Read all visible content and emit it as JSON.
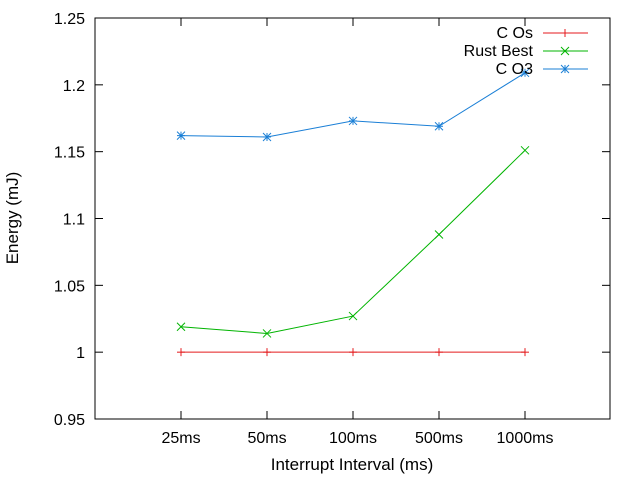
{
  "chart_data": {
    "type": "line",
    "title": "",
    "xlabel": "Interrupt Interval (ms)",
    "ylabel": "Energy (mJ)",
    "categories": [
      "25ms",
      "50ms",
      "100ms",
      "500ms",
      "1000ms"
    ],
    "ylim": [
      0.95,
      1.25
    ],
    "yticks": [
      "0.95",
      "1",
      "1.05",
      "1.1",
      "1.15",
      "1.2",
      "1.25"
    ],
    "grid": false,
    "legend_position": "top-right",
    "series": [
      {
        "name": "C Os",
        "color": "#e41a1c",
        "marker": "plus",
        "values": [
          1.0,
          1.0,
          1.0,
          1.0,
          1.0
        ]
      },
      {
        "name": "Rust Best",
        "color": "#00b400",
        "marker": "cross",
        "values": [
          1.019,
          1.014,
          1.027,
          1.088,
          1.151
        ]
      },
      {
        "name": "C O3",
        "color": "#1a7fd6",
        "marker": "star",
        "values": [
          1.162,
          1.161,
          1.173,
          1.169,
          1.209
        ]
      }
    ]
  }
}
